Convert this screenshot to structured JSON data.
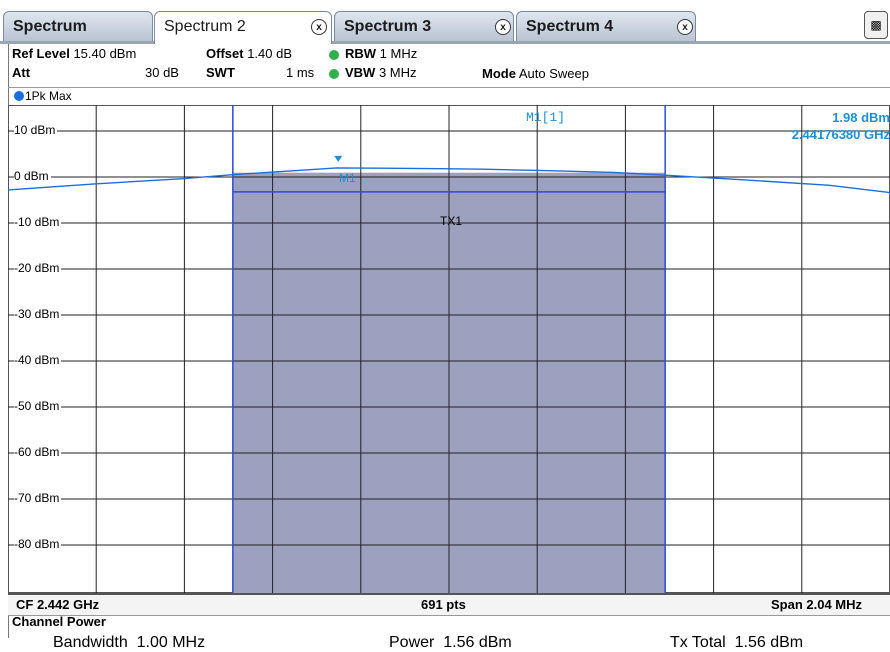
{
  "tabs": [
    {
      "label": "Spectrum",
      "closable": false,
      "active": false
    },
    {
      "label": "Spectrum 2",
      "closable": true,
      "active": true
    },
    {
      "label": "Spectrum 3",
      "closable": true,
      "active": false
    },
    {
      "label": "Spectrum 4",
      "closable": true,
      "active": false
    }
  ],
  "close_glyph": "x",
  "settings": {
    "ref_level_label": "Ref Level",
    "ref_level_value": "15.40 dBm",
    "offset_label": "Offset",
    "offset_value": "1.40 dB",
    "rbw_label": "RBW",
    "rbw_value": "1 MHz",
    "att_label": "Att",
    "att_value": "30 dB",
    "swt_label": "SWT",
    "swt_value": "1 ms",
    "vbw_label": "VBW",
    "vbw_value": "3 MHz",
    "mode_label": "Mode",
    "mode_value": "Auto Sweep"
  },
  "trace_label": "1Pk Max",
  "trace_color": "#1a6fe0",
  "y_labels": [
    "10 dBm",
    "0 dBm",
    "-10 dBm",
    "-20 dBm",
    "-30 dBm",
    "-40 dBm",
    "-50 dBm",
    "-60 dBm",
    "-70 dBm",
    "-80 dBm"
  ],
  "marker": {
    "name": "M1",
    "readout_label": "M1[1]",
    "level": "1.98 dBm",
    "frequency": "2.44176380 GHz"
  },
  "channel_label": "TX1",
  "footer": {
    "center_freq": "CF 2.442 GHz",
    "points": "691 pts",
    "span": "Span 2.04 MHz"
  },
  "results": {
    "title": "Channel Power",
    "bandwidth_label": "Bandwidth",
    "bandwidth_value": "1.00 MHz",
    "power_label": "Power",
    "power_value": "1.56 dBm",
    "tx_total_label": "Tx Total",
    "tx_total_value": "1.56 dBm"
  },
  "chart_data": {
    "type": "line",
    "x_unit": "MHz",
    "xlim": [
      2441.0,
      2443.04
    ],
    "ylim": [
      -90,
      15.4
    ],
    "y_ticks": [
      10,
      0,
      -10,
      -20,
      -30,
      -40,
      -50,
      -60,
      -70,
      -80
    ],
    "series": [
      {
        "x": [
          2441.0,
          2441.2,
          2441.4,
          2441.52,
          2441.6,
          2441.76,
          2441.9,
          2442.0,
          2442.1,
          2442.24,
          2442.4,
          2442.52,
          2442.7,
          2442.9,
          2443.04
        ],
        "values": [
          -2.8,
          -1.5,
          -0.4,
          0.5,
          1.0,
          1.98,
          1.9,
          1.8,
          1.7,
          1.4,
          1.0,
          0.4,
          -0.6,
          -1.8,
          -3.4
        ]
      }
    ],
    "channel": {
      "name": "TX1",
      "x_start": 2441.52,
      "x_end": 2442.52,
      "power": 1.56
    },
    "marker": {
      "x": 2441.7638,
      "y": 1.98
    }
  }
}
